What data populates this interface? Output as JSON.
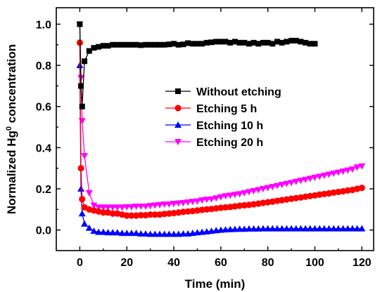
{
  "chart_data": {
    "type": "line",
    "title": "",
    "xlabel": "Time (min)",
    "ylabel_prefix": "Normalized Hg",
    "ylabel_sup": "0",
    "ylabel_suffix": " concentration",
    "xlim": [
      -10,
      125
    ],
    "ylim": [
      -0.1,
      1.08
    ],
    "xticks": [
      0,
      20,
      40,
      60,
      80,
      100,
      120
    ],
    "yticks": [
      0.0,
      0.2,
      0.4,
      0.6,
      0.8,
      1.0
    ],
    "ytick_labels": [
      "0.0",
      "0.2",
      "0.4",
      "0.6",
      "0.8",
      "1.0"
    ],
    "grid": false,
    "legend_position": "center-right",
    "series": [
      {
        "name": "Without etching",
        "color": "#000000",
        "marker": "square",
        "x": [
          0,
          0.5,
          1,
          2,
          4,
          6,
          8,
          10,
          12,
          14,
          16,
          18,
          20,
          22,
          24,
          26,
          28,
          30,
          32,
          34,
          36,
          38,
          40,
          42,
          44,
          46,
          48,
          50,
          52,
          54,
          56,
          58,
          60,
          62,
          64,
          66,
          68,
          70,
          72,
          74,
          76,
          78,
          80,
          82,
          84,
          86,
          88,
          90,
          92,
          94,
          96,
          98,
          100
        ],
        "y": [
          1.0,
          0.7,
          0.6,
          0.82,
          0.87,
          0.885,
          0.89,
          0.895,
          0.895,
          0.9,
          0.9,
          0.9,
          0.9,
          0.9,
          0.9,
          0.898,
          0.9,
          0.9,
          0.9,
          0.9,
          0.9,
          0.902,
          0.905,
          0.9,
          0.902,
          0.908,
          0.905,
          0.905,
          0.905,
          0.91,
          0.912,
          0.915,
          0.915,
          0.915,
          0.91,
          0.915,
          0.91,
          0.91,
          0.905,
          0.91,
          0.905,
          0.91,
          0.91,
          0.905,
          0.915,
          0.91,
          0.915,
          0.92,
          0.92,
          0.915,
          0.91,
          0.905,
          0.905
        ]
      },
      {
        "name": "Etching 5 h",
        "color": "#ff0000",
        "marker": "circle",
        "x": [
          0,
          0.5,
          1,
          2,
          4,
          6,
          8,
          10,
          12,
          14,
          16,
          18,
          20,
          22,
          24,
          26,
          28,
          30,
          32,
          34,
          36,
          38,
          40,
          42,
          44,
          46,
          48,
          50,
          52,
          54,
          56,
          58,
          60,
          62,
          64,
          66,
          68,
          70,
          72,
          74,
          76,
          78,
          80,
          82,
          84,
          86,
          88,
          90,
          92,
          94,
          96,
          98,
          100,
          102,
          104,
          106,
          108,
          110,
          112,
          114,
          116,
          118,
          120
        ],
        "y": [
          0.91,
          0.3,
          0.15,
          0.11,
          0.1,
          0.095,
          0.09,
          0.085,
          0.085,
          0.08,
          0.08,
          0.075,
          0.07,
          0.07,
          0.07,
          0.072,
          0.072,
          0.075,
          0.075,
          0.075,
          0.078,
          0.08,
          0.082,
          0.085,
          0.088,
          0.09,
          0.092,
          0.095,
          0.098,
          0.1,
          0.102,
          0.105,
          0.108,
          0.11,
          0.112,
          0.115,
          0.118,
          0.12,
          0.122,
          0.125,
          0.128,
          0.132,
          0.135,
          0.138,
          0.142,
          0.145,
          0.148,
          0.152,
          0.155,
          0.158,
          0.162,
          0.165,
          0.168,
          0.172,
          0.175,
          0.178,
          0.182,
          0.185,
          0.188,
          0.192,
          0.195,
          0.2,
          0.205
        ]
      },
      {
        "name": "Etching 10 h",
        "color": "#0000ff",
        "marker": "triangle-up",
        "x": [
          0,
          0.5,
          1,
          2,
          4,
          6,
          8,
          10,
          12,
          14,
          16,
          18,
          20,
          22,
          24,
          26,
          28,
          30,
          32,
          34,
          36,
          38,
          40,
          42,
          44,
          46,
          48,
          50,
          52,
          54,
          56,
          58,
          60,
          62,
          64,
          66,
          68,
          70,
          72,
          74,
          76,
          78,
          80,
          82,
          84,
          86,
          88,
          90,
          92,
          94,
          96,
          98,
          100,
          102,
          104,
          106,
          108,
          110,
          112,
          114,
          116,
          118,
          120
        ],
        "y": [
          0.8,
          0.2,
          0.08,
          0.03,
          0.01,
          -0.005,
          -0.01,
          -0.01,
          -0.012,
          -0.012,
          -0.012,
          -0.015,
          -0.015,
          -0.015,
          -0.015,
          -0.018,
          -0.018,
          -0.02,
          -0.02,
          -0.02,
          -0.02,
          -0.02,
          -0.02,
          -0.02,
          -0.018,
          -0.018,
          -0.015,
          -0.012,
          -0.01,
          -0.008,
          -0.005,
          -0.002,
          0.0,
          0.002,
          0.003,
          0.004,
          0.005,
          0.005,
          0.006,
          0.006,
          0.006,
          0.007,
          0.007,
          0.007,
          0.007,
          0.007,
          0.007,
          0.007,
          0.007,
          0.007,
          0.007,
          0.007,
          0.007,
          0.007,
          0.007,
          0.007,
          0.007,
          0.007,
          0.007,
          0.007,
          0.007,
          0.007,
          0.007
        ]
      },
      {
        "name": "Etching 20 h",
        "color": "#ff00ff",
        "marker": "triangle-down",
        "x": [
          0,
          0.5,
          1,
          2,
          4,
          6,
          8,
          10,
          12,
          14,
          16,
          18,
          20,
          22,
          24,
          26,
          28,
          30,
          32,
          34,
          36,
          38,
          40,
          42,
          44,
          46,
          48,
          50,
          52,
          54,
          56,
          58,
          60,
          62,
          64,
          66,
          68,
          70,
          72,
          74,
          76,
          78,
          80,
          82,
          84,
          86,
          88,
          90,
          92,
          94,
          96,
          98,
          100,
          102,
          104,
          106,
          108,
          110,
          112,
          114,
          116,
          118,
          120
        ],
        "y": [
          1.0,
          0.74,
          0.53,
          0.36,
          0.18,
          0.12,
          0.11,
          0.11,
          0.11,
          0.11,
          0.11,
          0.11,
          0.112,
          0.112,
          0.115,
          0.115,
          0.115,
          0.118,
          0.12,
          0.122,
          0.125,
          0.125,
          0.128,
          0.13,
          0.132,
          0.135,
          0.138,
          0.14,
          0.145,
          0.148,
          0.15,
          0.155,
          0.16,
          0.165,
          0.168,
          0.172,
          0.175,
          0.18,
          0.185,
          0.19,
          0.195,
          0.2,
          0.205,
          0.21,
          0.215,
          0.22,
          0.225,
          0.23,
          0.235,
          0.24,
          0.245,
          0.25,
          0.255,
          0.26,
          0.265,
          0.27,
          0.275,
          0.28,
          0.285,
          0.29,
          0.295,
          0.305,
          0.31
        ]
      }
    ]
  }
}
